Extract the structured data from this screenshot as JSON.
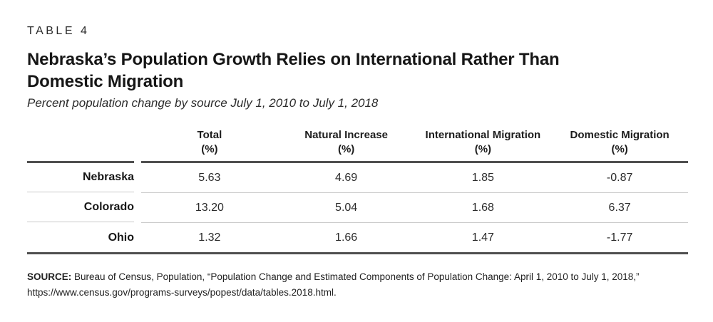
{
  "table_label": "TABLE 4",
  "title_line1": "Nebraska’s Population Growth Relies on International Rather Than",
  "title_line2": "Domestic Migration",
  "subtitle": "Percent population change by source July 1, 2010 to July 1, 2018",
  "table": {
    "columns": [
      {
        "label": "Total",
        "unit": "(%)"
      },
      {
        "label": "Natural Increase",
        "unit": "(%)"
      },
      {
        "label": "International Migration",
        "unit": "(%)"
      },
      {
        "label": "Domestic Migration",
        "unit": "(%)"
      }
    ],
    "rows": [
      {
        "state": "Nebraska",
        "values": [
          "5.63",
          "4.69",
          "1.85",
          "-0.87"
        ]
      },
      {
        "state": "Colorado",
        "values": [
          "13.20",
          "5.04",
          "1.68",
          "6.37"
        ]
      },
      {
        "state": "Ohio",
        "values": [
          "1.32",
          "1.66",
          "1.47",
          "-1.77"
        ]
      }
    ]
  },
  "source": {
    "label": "SOURCE:",
    "text": "Bureau of Census, Population, “Population Change and Estimated Components of Population Change: April 1, 2010 to July 1, 2018,” https://www.census.gov/programs-surveys/popest/data/tables.2018.html."
  },
  "colors": {
    "text": "#231f20",
    "rule_heavy": "#4f4f4f",
    "rule_light": "#c9c9c9",
    "background": "#ffffff"
  },
  "chart_data": {
    "type": "table",
    "title": "Nebraska’s Population Growth Relies on International Rather Than Domestic Migration",
    "subtitle": "Percent population change by source July 1, 2010 to July 1, 2018",
    "columns": [
      "Total (%)",
      "Natural Increase (%)",
      "International Migration (%)",
      "Domestic Migration (%)"
    ],
    "categories": [
      "Nebraska",
      "Colorado",
      "Ohio"
    ],
    "series": [
      {
        "name": "Total (%)",
        "values": [
          5.63,
          13.2,
          1.32
        ]
      },
      {
        "name": "Natural Increase (%)",
        "values": [
          4.69,
          5.04,
          1.66
        ]
      },
      {
        "name": "International Migration (%)",
        "values": [
          1.85,
          1.68,
          1.47
        ]
      },
      {
        "name": "Domestic Migration (%)",
        "values": [
          -0.87,
          6.37,
          -1.77
        ]
      }
    ]
  }
}
